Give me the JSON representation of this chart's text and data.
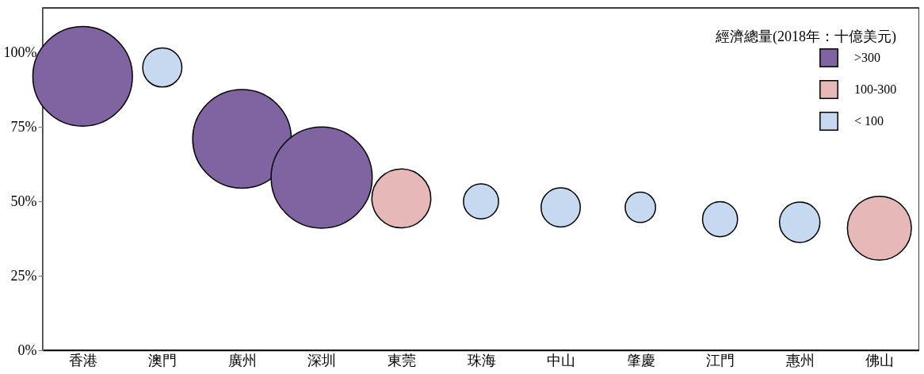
{
  "chart_data": {
    "type": "bubble",
    "categories": [
      "香港",
      "澳門",
      "廣州",
      "深圳",
      "東莞",
      "珠海",
      "中山",
      "肇慶",
      "江門",
      "惠州",
      "佛山"
    ],
    "series": [
      {
        "name": ">300",
        "color": "#8064a2",
        "values": [
          92,
          null,
          71,
          58,
          null,
          null,
          null,
          null,
          null,
          null,
          null
        ],
        "sizes": [
          0.97,
          null,
          0.95,
          1,
          null,
          null,
          null,
          null,
          null,
          null,
          null
        ]
      },
      {
        "name": "100-300",
        "color": "#e6b9b8",
        "values": [
          null,
          null,
          null,
          null,
          51,
          null,
          null,
          null,
          null,
          null,
          41
        ],
        "sizes": [
          null,
          null,
          null,
          null,
          0.34,
          null,
          null,
          null,
          null,
          null,
          0.4
        ]
      },
      {
        "name": "< 100",
        "color": "#c6d9f1",
        "values": [
          null,
          95,
          null,
          null,
          null,
          50,
          48,
          48,
          44,
          43,
          null
        ],
        "sizes": [
          null,
          0.15,
          null,
          null,
          null,
          0.12,
          0.15,
          0.09,
          0.12,
          0.16,
          null
        ]
      }
    ],
    "legend_title": "經濟總量(2018年：十億美元)",
    "legend": "top right",
    "ylim": [
      0,
      115
    ],
    "yticks": [
      {
        "value": 0,
        "label": "0%"
      },
      {
        "value": 25,
        "label": "25%"
      },
      {
        "value": 50,
        "label": "50%"
      },
      {
        "value": 75,
        "label": "75%"
      },
      {
        "value": 100,
        "label": "100%"
      }
    ],
    "grid": false
  }
}
